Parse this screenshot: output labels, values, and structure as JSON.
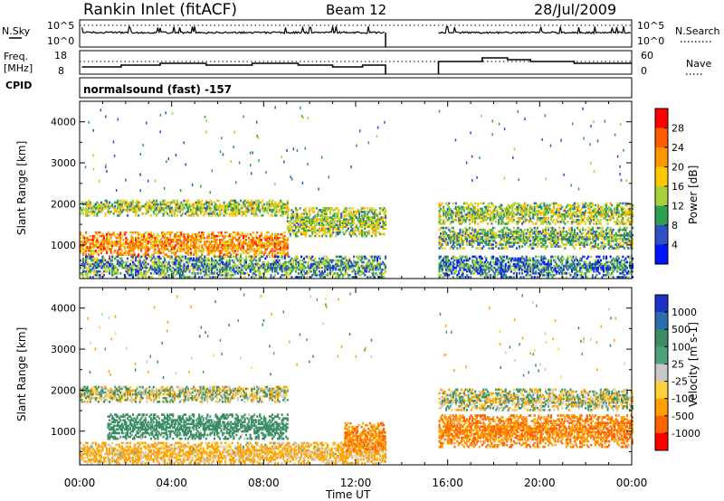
{
  "header": {
    "title": "Rankin Inlet (fitACF)",
    "beam": "Beam 12",
    "date": "28/Jul/2009"
  },
  "top_panels": {
    "nsky_label": "N.Sky",
    "nsky_ticks": [
      "10^5",
      "10^0"
    ],
    "nsearch_label": "N.Search",
    "nsearch_ticks": [
      "10^5",
      "10^0"
    ],
    "freq_label": "Freq.",
    "freq_unit": "[MHz]",
    "freq_ticks": [
      "18",
      "8"
    ],
    "nave_label": "Nave",
    "nave_ticks": [
      "60",
      "0"
    ],
    "cpid_label": "CPID",
    "cpid_text": "normalsound (fast) -157"
  },
  "power_panel": {
    "ylabel": "Slant Range [km]",
    "cbar_label": "Power [dB]",
    "cbar_ticks": [
      "28",
      "24",
      "20",
      "16",
      "12",
      "8",
      "4"
    ],
    "cbar_colors": [
      "#ff0000",
      "#ff5a00",
      "#ff9600",
      "#ffc800",
      "#a8d23c",
      "#2ea050",
      "#3050c8",
      "#0014ff"
    ]
  },
  "velocity_panel": {
    "ylabel": "Slant Range [km]",
    "cbar_label": "Velocity [m s-1]",
    "cbar_ticks": [
      "1000",
      "500",
      "100",
      "25",
      "-25",
      "-100",
      "-500",
      "-1000"
    ],
    "cbar_colors": [
      "#1e32c8",
      "#2a6eb0",
      "#3c8c64",
      "#4ea07a",
      "#c8c8c8",
      "#ffd23c",
      "#ffa000",
      "#ff6400",
      "#ff0000"
    ]
  },
  "xaxis": {
    "label": "Time UT",
    "ticks": [
      "00:00",
      "04:00",
      "08:00",
      "12:00",
      "16:00",
      "20:00",
      "00:00"
    ]
  },
  "chart_data": [
    {
      "type": "heatmap",
      "title": "Power",
      "xlabel": "Time UT",
      "ylabel": "Slant Range [km]",
      "xlim": [
        0,
        24
      ],
      "ylim": [
        180,
        4500
      ],
      "yticks": [
        1000,
        2000,
        3000,
        4000
      ],
      "data_gap_hours": [
        13.3,
        15.6
      ],
      "scatter_bands": [
        {
          "t_start": 0.0,
          "t_end": 9.0,
          "range_min": 1700,
          "range_max": 2100,
          "value": 14
        },
        {
          "t_start": 0.0,
          "t_end": 9.0,
          "range_min": 700,
          "range_max": 1300,
          "value": 22
        },
        {
          "t_start": 0.0,
          "t_end": 13.3,
          "range_min": 200,
          "range_max": 700,
          "value": 10
        },
        {
          "t_start": 9.0,
          "t_end": 13.3,
          "range_min": 1200,
          "range_max": 1900,
          "value": 14
        },
        {
          "t_start": 15.6,
          "t_end": 24.0,
          "range_min": 1500,
          "range_max": 2000,
          "value": 14
        },
        {
          "t_start": 15.6,
          "t_end": 24.0,
          "range_min": 900,
          "range_max": 1400,
          "value": 12
        },
        {
          "t_start": 15.6,
          "t_end": 24.0,
          "range_min": 200,
          "range_max": 700,
          "value": 8
        }
      ]
    },
    {
      "type": "heatmap",
      "title": "Velocity",
      "xlabel": "Time UT",
      "ylabel": "Slant Range [km]",
      "xlim": [
        0,
        24
      ],
      "ylim": [
        180,
        4500
      ],
      "yticks": [
        1000,
        2000,
        3000,
        4000
      ],
      "data_gap_hours": [
        13.3,
        15.6
      ],
      "scatter_bands": [
        {
          "t_start": 0.0,
          "t_end": 9.0,
          "range_min": 1700,
          "range_max": 2100,
          "value": 0
        },
        {
          "t_start": 1.2,
          "t_end": 9.0,
          "range_min": 800,
          "range_max": 1400,
          "value": 150
        },
        {
          "t_start": 0.0,
          "t_end": 13.3,
          "range_min": 200,
          "range_max": 700,
          "value": -100
        },
        {
          "t_start": 11.5,
          "t_end": 13.3,
          "range_min": 500,
          "range_max": 1200,
          "value": -300
        },
        {
          "t_start": 15.6,
          "t_end": 24.0,
          "range_min": 1500,
          "range_max": 2000,
          "value": 0
        },
        {
          "t_start": 15.6,
          "t_end": 24.0,
          "range_min": 600,
          "range_max": 1400,
          "value": -300
        }
      ]
    }
  ]
}
